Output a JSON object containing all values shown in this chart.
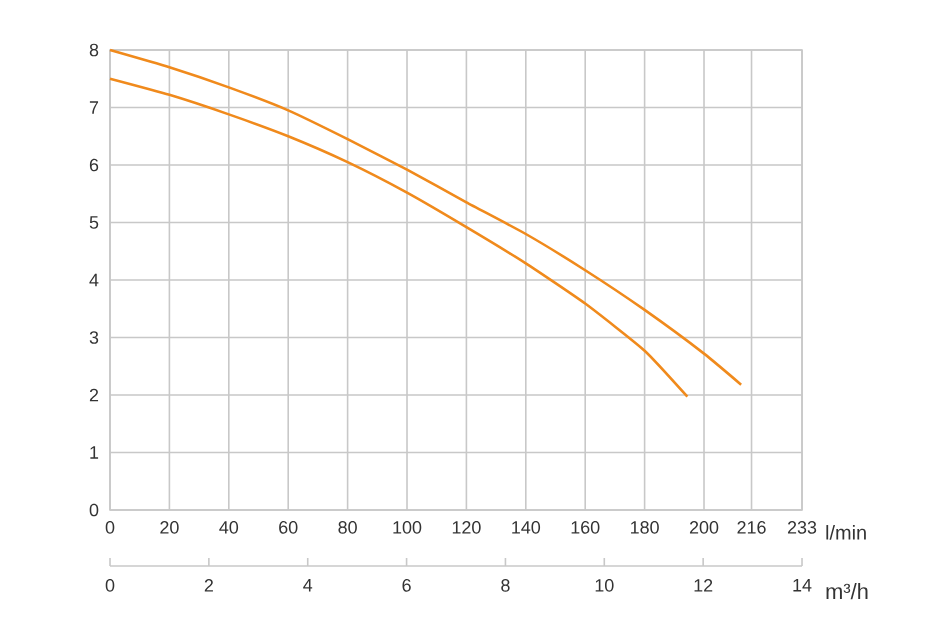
{
  "chart_data": {
    "type": "line",
    "xlabel": "l/min",
    "x2label": "m³/h",
    "xlim": [
      0,
      233
    ],
    "xticks": [
      0,
      20,
      40,
      60,
      80,
      100,
      120,
      140,
      160,
      180,
      200,
      216,
      233
    ],
    "ylim": [
      0,
      8
    ],
    "yticks": [
      0,
      1,
      2,
      3,
      4,
      5,
      6,
      7,
      8
    ],
    "x2lim": [
      0,
      14
    ],
    "x2ticks": [
      0,
      2,
      4,
      6,
      8,
      10,
      12,
      14
    ],
    "grid": true,
    "legend": false,
    "marker": "none",
    "line_style": "solid",
    "series": [
      {
        "color": "#f08a1c",
        "x": [
          0,
          20,
          40,
          60,
          80,
          100,
          120,
          140,
          160,
          180,
          200,
          212.5
        ],
        "values": [
          8.0,
          7.7,
          7.35,
          6.95,
          6.45,
          5.92,
          5.35,
          4.8,
          4.17,
          3.48,
          2.72,
          2.18
        ]
      },
      {
        "color": "#f08a1c",
        "x": [
          0,
          20,
          40,
          60,
          80,
          100,
          120,
          140,
          160,
          180,
          194.4
        ],
        "values": [
          7.5,
          7.22,
          6.88,
          6.5,
          6.05,
          5.52,
          4.92,
          4.29,
          3.59,
          2.77,
          1.97
        ]
      }
    ]
  }
}
